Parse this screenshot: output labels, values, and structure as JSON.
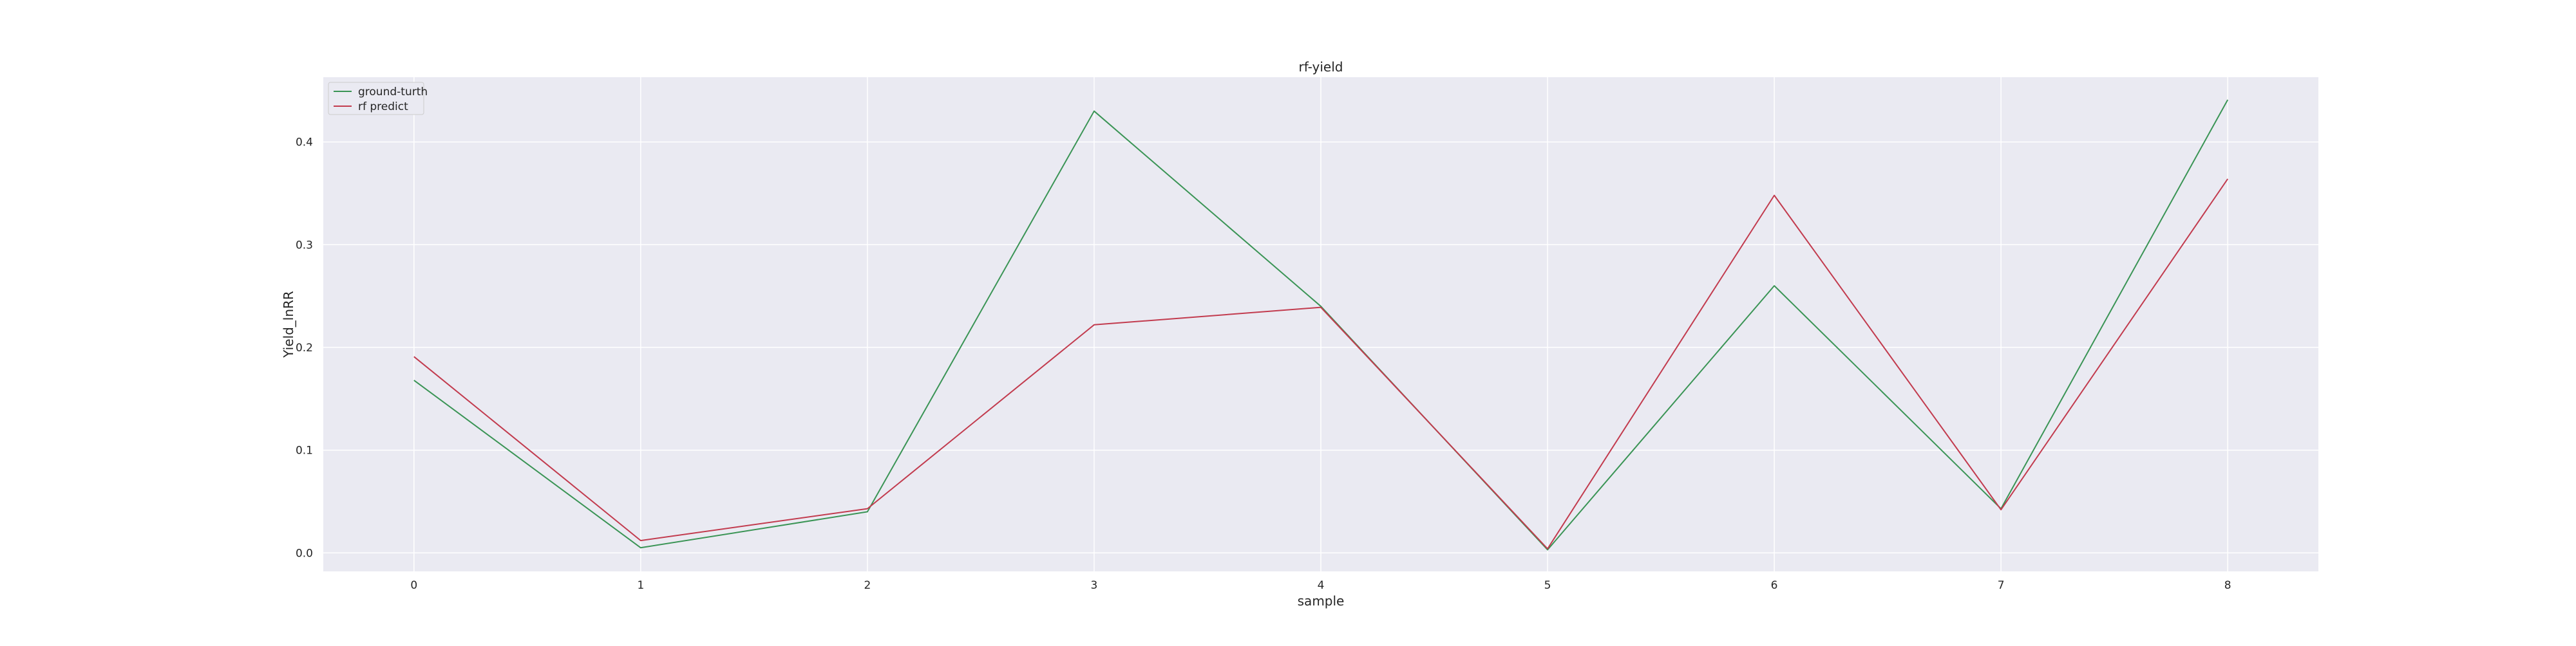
{
  "chart_data": {
    "type": "line",
    "title": "rf-yield",
    "xlabel": "sample",
    "ylabel": "Yield_lnRR",
    "x": [
      0,
      1,
      2,
      3,
      4,
      5,
      6,
      7,
      8
    ],
    "xlim": [
      -0.4,
      8.4
    ],
    "ylim": [
      -0.018,
      0.463
    ],
    "xticks": [
      0,
      1,
      2,
      3,
      4,
      5,
      6,
      7,
      8
    ],
    "yticks": [
      0.0,
      0.1,
      0.2,
      0.3,
      0.4
    ],
    "ytick_labels": [
      "0.0",
      "0.1",
      "0.2",
      "0.3",
      "0.4"
    ],
    "grid": true,
    "legend_position": "top-left",
    "series": [
      {
        "name": "ground-turth",
        "color": "#3a9455",
        "values": [
          0.168,
          0.005,
          0.04,
          0.43,
          0.24,
          0.003,
          0.26,
          0.043,
          0.441
        ]
      },
      {
        "name": "rf predict",
        "color": "#c23b4e",
        "values": [
          0.191,
          0.012,
          0.043,
          0.222,
          0.239,
          0.004,
          0.348,
          0.042,
          0.364
        ]
      }
    ]
  }
}
